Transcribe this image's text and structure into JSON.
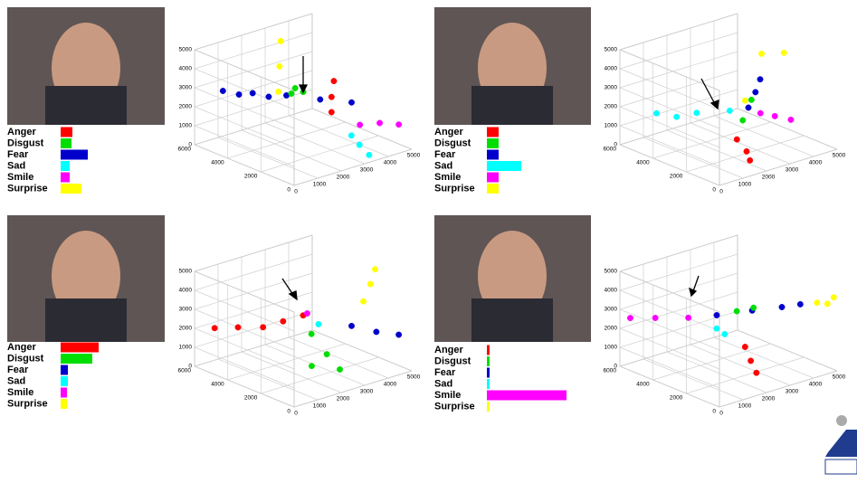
{
  "chart_data": [
    {
      "type": "bar",
      "categories": [
        "Anger",
        "Disgust",
        "Fear",
        "Sad",
        "Smile",
        "Surprise"
      ],
      "values": [
        13,
        12,
        30,
        10,
        10,
        23
      ],
      "colors": [
        "#ff0000",
        "#00dd00",
        "#0000cc",
        "#00ffff",
        "#ff00ff",
        "#ffff00"
      ],
      "xlim": [
        0,
        100
      ]
    },
    {
      "type": "scatter3d",
      "xlim": [
        0,
        5000
      ],
      "ylim": [
        0,
        6000
      ],
      "zlim": [
        0,
        5000
      ],
      "xticks": [
        0,
        1000,
        2000,
        3000,
        4000,
        5000
      ],
      "yticks": [
        0,
        2000,
        4000,
        6000
      ],
      "zticks": [
        0,
        1000,
        2000,
        3000,
        4000,
        5000
      ],
      "series": [
        {
          "color": "#0000cc",
          "x": [
            500,
            1200,
            2000,
            2800,
            3500,
            900,
            1600
          ],
          "y": [
            5000,
            4200,
            3300,
            2400,
            1500,
            4600,
            3800
          ],
          "z": [
            3000,
            2900,
            2800,
            2600,
            2500,
            2800,
            2700
          ]
        },
        {
          "color": "#00dd00",
          "x": [
            2000,
            2300,
            2500
          ],
          "y": [
            3000,
            3200,
            3000
          ],
          "z": [
            3000,
            3100,
            2900
          ]
        },
        {
          "color": "#ffff00",
          "x": [
            1800,
            2200,
            2600
          ],
          "y": [
            3500,
            4000,
            4500
          ],
          "z": [
            3000,
            4000,
            5000
          ]
        },
        {
          "color": "#ff0000",
          "x": [
            3000,
            3000,
            3100
          ],
          "y": [
            2000,
            2000,
            2000
          ],
          "z": [
            2000,
            2800,
            3600
          ]
        },
        {
          "color": "#ff00ff",
          "x": [
            3500,
            4200,
            4800
          ],
          "y": [
            1000,
            800,
            500
          ],
          "z": [
            1500,
            1400,
            1200
          ]
        },
        {
          "color": "#00ffff",
          "x": [
            3000,
            3200,
            3400
          ],
          "y": [
            800,
            600,
            300
          ],
          "z": [
            1200,
            700,
            200
          ]
        }
      ]
    },
    {
      "type": "bar",
      "categories": [
        "Anger",
        "Disgust",
        "Fear",
        "Sad",
        "Smile",
        "Surprise"
      ],
      "values": [
        13,
        13,
        13,
        38,
        13,
        13
      ],
      "colors": [
        "#ff0000",
        "#00dd00",
        "#0000cc",
        "#00ffff",
        "#ff00ff",
        "#ffff00"
      ],
      "xlim": [
        0,
        100
      ]
    },
    {
      "type": "scatter3d",
      "xlim": [
        0,
        5000
      ],
      "ylim": [
        0,
        6000
      ],
      "zlim": [
        0,
        5000
      ],
      "xticks": [
        0,
        1000,
        2000,
        3000,
        4000,
        5000
      ],
      "yticks": [
        0,
        2000,
        4000,
        6000
      ],
      "zticks": [
        0,
        1000,
        2000,
        3000,
        4000,
        5000
      ],
      "series": [
        {
          "color": "#00ffff",
          "x": [
            500,
            1000,
            1500,
            2200
          ],
          "y": [
            4500,
            4000,
            3500,
            2500
          ],
          "z": [
            2000,
            1800,
            2000,
            2200
          ]
        },
        {
          "color": "#ffff00",
          "x": [
            2500,
            3200,
            3800
          ],
          "y": [
            2000,
            2000,
            1500
          ],
          "z": [
            2800,
            5000,
            5000
          ]
        },
        {
          "color": "#0000cc",
          "x": [
            2500,
            2800,
            3000
          ],
          "y": [
            1800,
            1800,
            1800
          ],
          "z": [
            2500,
            3200,
            3800
          ]
        },
        {
          "color": "#00dd00",
          "x": [
            2400,
            2700
          ],
          "y": [
            2000,
            1900
          ],
          "z": [
            1800,
            2800
          ]
        },
        {
          "color": "#ff0000",
          "x": [
            1800,
            2000,
            2000
          ],
          "y": [
            1500,
            1200,
            1000
          ],
          "z": [
            1200,
            600,
            200
          ]
        },
        {
          "color": "#ff00ff",
          "x": [
            2800,
            3200,
            3600
          ],
          "y": [
            1500,
            1200,
            800
          ],
          "z": [
            2200,
            2000,
            1800
          ]
        }
      ]
    },
    {
      "type": "bar",
      "categories": [
        "Anger",
        "Disgust",
        "Fear",
        "Sad",
        "Smile",
        "Surprise"
      ],
      "values": [
        42,
        35,
        8,
        8,
        7,
        7
      ],
      "colors": [
        "#ff0000",
        "#00dd00",
        "#0000cc",
        "#00ffff",
        "#ff00ff",
        "#ffff00"
      ],
      "xlim": [
        0,
        100
      ]
    },
    {
      "type": "scatter3d",
      "xlim": [
        0,
        5000
      ],
      "ylim": [
        0,
        6000
      ],
      "zlim": [
        0,
        5000
      ],
      "xticks": [
        0,
        1000,
        2000,
        3000,
        4000,
        5000
      ],
      "yticks": [
        0,
        2000,
        4000,
        6000
      ],
      "zticks": [
        0,
        1000,
        2000,
        3000,
        4000,
        5000
      ],
      "series": [
        {
          "color": "#ff0000",
          "x": [
            500,
            1000,
            1500,
            2000,
            2500
          ],
          "y": [
            5500,
            4800,
            4000,
            3500,
            3000
          ],
          "z": [
            2000,
            2100,
            2200,
            2500,
            2800
          ]
        },
        {
          "color": "#00dd00",
          "x": [
            2500,
            2800,
            3000,
            2300
          ],
          "y": [
            2500,
            2000,
            1500,
            2200
          ],
          "z": [
            2000,
            1000,
            300,
            500
          ]
        },
        {
          "color": "#0000cc",
          "x": [
            3500,
            4200,
            4800
          ],
          "y": [
            1500,
            1000,
            500
          ],
          "z": [
            2400,
            2000,
            1800
          ]
        },
        {
          "color": "#ffff00",
          "x": [
            4000,
            4300,
            4500
          ],
          "y": [
            1500,
            1500,
            1500
          ],
          "z": [
            3500,
            4300,
            5000
          ]
        },
        {
          "color": "#ff00ff",
          "x": [
            2600
          ],
          "y": [
            2900
          ],
          "z": [
            2900
          ]
        },
        {
          "color": "#00ffff",
          "x": [
            2800
          ],
          "y": [
            2500
          ],
          "z": [
            2400
          ]
        }
      ]
    },
    {
      "type": "bar",
      "categories": [
        "Anger",
        "Disgust",
        "Fear",
        "Sad",
        "Smile",
        "Surprise"
      ],
      "values": [
        3,
        3,
        3,
        3,
        88,
        3
      ],
      "colors": [
        "#ff0000",
        "#00dd00",
        "#0000cc",
        "#00ffff",
        "#ff00ff",
        "#ffff00"
      ],
      "xlim": [
        0,
        100
      ]
    },
    {
      "type": "scatter3d",
      "xlim": [
        0,
        5000
      ],
      "ylim": [
        0,
        6000
      ],
      "zlim": [
        0,
        5000
      ],
      "xticks": [
        0,
        1000,
        2000,
        3000,
        4000,
        5000
      ],
      "yticks": [
        0,
        2000,
        4000,
        6000
      ],
      "zticks": [
        0,
        1000,
        2000,
        3000,
        4000,
        5000
      ],
      "series": [
        {
          "color": "#ff00ff",
          "x": [
            300,
            800,
            1500
          ],
          "y": [
            5800,
            5000,
            4000
          ],
          "z": [
            2500,
            2600,
            2700
          ]
        },
        {
          "color": "#00ffff",
          "x": [
            2000,
            2200
          ],
          "y": [
            3000,
            2800
          ],
          "z": [
            2300,
            2000
          ]
        },
        {
          "color": "#0000cc",
          "x": [
            2000,
            2800,
            3500,
            4000
          ],
          "y": [
            3000,
            2000,
            1200,
            800
          ],
          "z": [
            3000,
            3300,
            3500,
            3600
          ]
        },
        {
          "color": "#00dd00",
          "x": [
            2500,
            3000
          ],
          "y": [
            2500,
            2200
          ],
          "z": [
            3200,
            3300
          ]
        },
        {
          "color": "#ffff00",
          "x": [
            4500,
            5000,
            4800
          ],
          "y": [
            500,
            200,
            300
          ],
          "z": [
            3600,
            3800,
            3500
          ]
        },
        {
          "color": "#ff0000",
          "x": [
            2500,
            2600,
            2700
          ],
          "y": [
            2000,
            1800,
            1600
          ],
          "z": [
            1500,
            800,
            200
          ]
        }
      ]
    }
  ]
}
